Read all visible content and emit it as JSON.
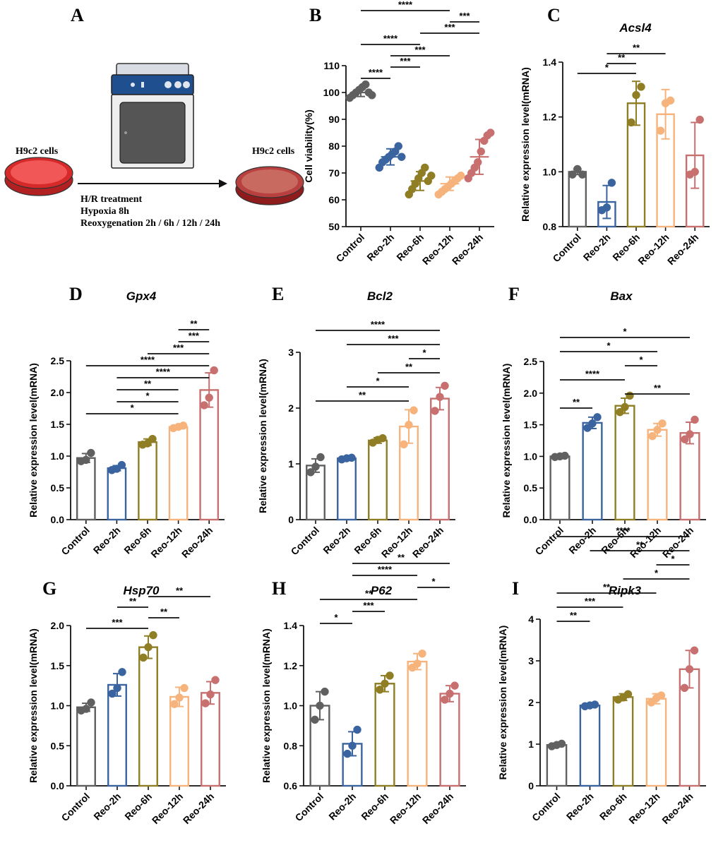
{
  "colors": {
    "Control": "#606060",
    "Reo-2h": "#3a64a0",
    "Reo-6h": "#8f7e24",
    "Reo-12h": "#f7b37c",
    "Reo-24h": "#c87070"
  },
  "schematic": {
    "label": "A",
    "left_caption": "H9c2 cells",
    "right_caption": "H9c2 cells",
    "treatment_lines": [
      "H/R treatment",
      "Hypoxia 8h",
      "Reoxygenation 2h / 6h / 12h / 24h"
    ]
  },
  "chart_data": [
    {
      "id": "B",
      "label": "B",
      "type": "scatter",
      "title": "",
      "ylabel": "Cell viability(%)",
      "categories": [
        "Control",
        "Reo-2h",
        "Reo-6h",
        "Reo-12h",
        "Reo-24h"
      ],
      "ylim": [
        50,
        110
      ],
      "yticks": [
        "50",
        "60",
        "70",
        "80",
        "90",
        "100",
        "110"
      ],
      "means": [
        100,
        76,
        67,
        66,
        76
      ],
      "sd": [
        1.5,
        3.0,
        3.5,
        2.5,
        6.5
      ],
      "points": [
        [
          98,
          99,
          100,
          101,
          102,
          103,
          100,
          99
        ],
        [
          72,
          74,
          75,
          76,
          77,
          78,
          80,
          76
        ],
        [
          62,
          64,
          66,
          68,
          70,
          72,
          67,
          69
        ],
        [
          62,
          63,
          64,
          65,
          66,
          67,
          68,
          69
        ],
        [
          68,
          70,
          72,
          74,
          78,
          82,
          84,
          85
        ]
      ],
      "comparisons": [
        {
          "a": 0,
          "b": 1,
          "label": "****"
        },
        {
          "a": 1,
          "b": 2,
          "label": "***"
        },
        {
          "a": 1,
          "b": 3,
          "label": "***"
        },
        {
          "a": 0,
          "b": 2,
          "label": "****"
        },
        {
          "a": 2,
          "b": 4,
          "label": "***"
        },
        {
          "a": 3,
          "b": 4,
          "label": "***"
        },
        {
          "a": 0,
          "b": 3,
          "label": "****"
        },
        {
          "a": 0,
          "b": 4,
          "label": "****"
        }
      ]
    },
    {
      "id": "C",
      "label": "C",
      "type": "bar",
      "title": "Acsl4",
      "ylabel": "Relative expression level(mRNA)",
      "categories": [
        "Control",
        "Reo-2h",
        "Reo-6h",
        "Reo-12h",
        "Reo-24h"
      ],
      "ylim": [
        0.8,
        1.4
      ],
      "yticks": [
        "0.8",
        "1.0",
        "1.2",
        "1.4"
      ],
      "means": [
        1.0,
        0.89,
        1.25,
        1.21,
        1.06
      ],
      "sd": [
        0.01,
        0.06,
        0.08,
        0.09,
        0.12
      ],
      "points": [
        [
          0.99,
          1.01,
          0.99
        ],
        [
          0.86,
          0.87,
          0.96
        ],
        [
          1.18,
          1.28,
          1.31
        ],
        [
          1.15,
          1.25,
          1.26
        ],
        [
          0.99,
          1.0,
          1.19
        ]
      ],
      "comparisons": [
        {
          "a": 0,
          "b": 2,
          "label": "*"
        },
        {
          "a": 1,
          "b": 2,
          "label": "**"
        },
        {
          "a": 1,
          "b": 3,
          "label": "**"
        }
      ]
    },
    {
      "id": "D",
      "label": "D",
      "type": "bar",
      "title": "Gpx4",
      "ylabel": "Relative expression level(mRNA)",
      "categories": [
        "Control",
        "Reo-2h",
        "Reo-6h",
        "Reo-12h",
        "Reo-24h"
      ],
      "ylim": [
        0,
        2.5
      ],
      "yticks": [
        "0.0",
        "0.5",
        "1.0",
        "1.5",
        "2.0",
        "2.5"
      ],
      "means": [
        0.97,
        0.81,
        1.22,
        1.46,
        2.04
      ],
      "sd": [
        0.07,
        0.04,
        0.05,
        0.03,
        0.27
      ],
      "points": [
        [
          0.92,
          0.94,
          1.05
        ],
        [
          0.78,
          0.8,
          0.86
        ],
        [
          1.18,
          1.2,
          1.27
        ],
        [
          1.44,
          1.46,
          1.48
        ],
        [
          1.8,
          1.92,
          2.35
        ]
      ],
      "comparisons": [
        {
          "a": 0,
          "b": 3,
          "label": "*"
        },
        {
          "a": 1,
          "b": 3,
          "label": "*"
        },
        {
          "a": 1,
          "b": 3,
          "label": "**"
        },
        {
          "a": 1,
          "b": 4,
          "label": "****"
        },
        {
          "a": 0,
          "b": 4,
          "label": "****"
        },
        {
          "a": 2,
          "b": 4,
          "label": "***"
        },
        {
          "a": 3,
          "b": 4,
          "label": "***"
        },
        {
          "a": 3,
          "b": 4,
          "label": "**"
        }
      ]
    },
    {
      "id": "E",
      "label": "E",
      "type": "bar",
      "title": "Bcl2",
      "ylabel": "Relative expression level(mRNA)",
      "categories": [
        "Control",
        "Reo-2h",
        "Reo-6h",
        "Reo-12h",
        "Reo-24h"
      ],
      "ylim": [
        0,
        3
      ],
      "yticks": [
        "0",
        "1",
        "2",
        "3"
      ],
      "means": [
        0.97,
        1.1,
        1.42,
        1.67,
        2.17
      ],
      "sd": [
        0.12,
        0.03,
        0.05,
        0.3,
        0.2
      ],
      "points": [
        [
          0.85,
          0.95,
          1.12
        ],
        [
          1.08,
          1.1,
          1.11
        ],
        [
          1.38,
          1.43,
          1.46
        ],
        [
          1.35,
          1.7,
          1.96
        ],
        [
          1.95,
          2.2,
          2.4
        ]
      ],
      "comparisons": [
        {
          "a": 0,
          "b": 3,
          "label": "**"
        },
        {
          "a": 1,
          "b": 3,
          "label": "*"
        },
        {
          "a": 2,
          "b": 4,
          "label": "**"
        },
        {
          "a": 3,
          "b": 4,
          "label": "*"
        },
        {
          "a": 1,
          "b": 4,
          "label": "***"
        },
        {
          "a": 0,
          "b": 4,
          "label": "****"
        }
      ]
    },
    {
      "id": "F",
      "label": "F",
      "type": "bar",
      "title": "Bax",
      "ylabel": "Relative expression level(mRNA)",
      "categories": [
        "Control",
        "Reo-2h",
        "Reo-6h",
        "Reo-12h",
        "Reo-24h"
      ],
      "ylim": [
        0,
        2.5
      ],
      "yticks": [
        "0.0",
        "0.5",
        "1.0",
        "1.5",
        "2.0",
        "2.5"
      ],
      "means": [
        1.0,
        1.53,
        1.8,
        1.42,
        1.37
      ],
      "sd": [
        0.01,
        0.09,
        0.12,
        0.1,
        0.17
      ],
      "points": [
        [
          0.99,
          1.0,
          1.01
        ],
        [
          1.45,
          1.52,
          1.62
        ],
        [
          1.7,
          1.78,
          1.96
        ],
        [
          1.32,
          1.42,
          1.52
        ],
        [
          1.27,
          1.35,
          1.58
        ]
      ],
      "comparisons": [
        {
          "a": 0,
          "b": 1,
          "label": "**"
        },
        {
          "a": 2,
          "b": 4,
          "label": "**"
        },
        {
          "a": 0,
          "b": 2,
          "label": "****"
        },
        {
          "a": 2,
          "b": 3,
          "label": "*"
        },
        {
          "a": 0,
          "b": 3,
          "label": "*"
        },
        {
          "a": 0,
          "b": 4,
          "label": "*"
        }
      ]
    },
    {
      "id": "G",
      "label": "G",
      "type": "bar",
      "title": "Hsp70",
      "ylabel": "Relative expression level(mRNA)",
      "categories": [
        "Control",
        "Reo-2h",
        "Reo-6h",
        "Reo-12h",
        "Reo-24h"
      ],
      "ylim": [
        0,
        2.0
      ],
      "yticks": [
        "0.0",
        "0.5",
        "1.0",
        "1.5",
        "2.0"
      ],
      "means": [
        0.98,
        1.26,
        1.73,
        1.11,
        1.16
      ],
      "sd": [
        0.05,
        0.14,
        0.14,
        0.12,
        0.14
      ],
      "points": [
        [
          0.94,
          0.96,
          1.04
        ],
        [
          1.15,
          1.22,
          1.42
        ],
        [
          1.6,
          1.73,
          1.88
        ],
        [
          1.02,
          1.1,
          1.22
        ],
        [
          1.03,
          1.14,
          1.32
        ]
      ],
      "comparisons": [
        {
          "a": 0,
          "b": 2,
          "label": "***"
        },
        {
          "a": 2,
          "b": 3,
          "label": "**"
        },
        {
          "a": 1,
          "b": 2,
          "label": "**"
        },
        {
          "a": 2,
          "b": 4,
          "label": "**"
        }
      ]
    },
    {
      "id": "H",
      "label": "H",
      "type": "bar",
      "title": "P62",
      "ylabel": "Relative expression level(mRNA)",
      "categories": [
        "Control",
        "Reo-2h",
        "Reo-6h",
        "Reo-12h",
        "Reo-24h"
      ],
      "ylim": [
        0.6,
        1.4
      ],
      "yticks": [
        "0.6",
        "0.8",
        "1.0",
        "1.2",
        "1.4"
      ],
      "means": [
        1.0,
        0.81,
        1.11,
        1.22,
        1.06
      ],
      "sd": [
        0.07,
        0.06,
        0.04,
        0.04,
        0.04
      ],
      "points": [
        [
          0.93,
          1.0,
          1.07
        ],
        [
          0.76,
          0.8,
          0.88
        ],
        [
          1.08,
          1.11,
          1.15
        ],
        [
          1.19,
          1.21,
          1.26
        ],
        [
          1.03,
          1.06,
          1.1
        ]
      ],
      "comparisons": [
        {
          "a": 0,
          "b": 1,
          "label": "*"
        },
        {
          "a": 1,
          "b": 2,
          "label": "***"
        },
        {
          "a": 0,
          "b": 3,
          "label": "**"
        },
        {
          "a": 3,
          "b": 4,
          "label": "*"
        },
        {
          "a": 1,
          "b": 3,
          "label": "****"
        },
        {
          "a": 1,
          "b": 4,
          "label": "**"
        }
      ]
    },
    {
      "id": "I",
      "label": "I",
      "type": "bar",
      "title": "Ripk3",
      "ylabel": "Relative expression level(mRNA)",
      "categories": [
        "Control",
        "Reo-2h",
        "Reo-6h",
        "Reo-12h",
        "Reo-24h"
      ],
      "ylim": [
        0,
        4
      ],
      "yticks": [
        "0",
        "1",
        "2",
        "3",
        "4"
      ],
      "means": [
        0.98,
        1.93,
        2.13,
        2.09,
        2.8
      ],
      "sd": [
        0.03,
        0.02,
        0.08,
        0.12,
        0.45
      ],
      "points": [
        [
          0.95,
          0.98,
          1.01
        ],
        [
          1.91,
          1.93,
          1.95
        ],
        [
          2.07,
          2.12,
          2.2
        ],
        [
          2.0,
          2.1,
          2.17
        ],
        [
          2.35,
          2.8,
          3.25
        ]
      ],
      "comparisons": [
        {
          "a": 0,
          "b": 1,
          "label": "**"
        },
        {
          "a": 0,
          "b": 2,
          "label": "***"
        },
        {
          "a": 0,
          "b": 3,
          "label": "**"
        },
        {
          "a": 2,
          "b": 4,
          "label": "*"
        },
        {
          "a": 3,
          "b": 4,
          "label": "*"
        },
        {
          "a": 1,
          "b": 4,
          "label": "**"
        },
        {
          "a": 0,
          "b": 4,
          "label": "****"
        }
      ]
    }
  ]
}
